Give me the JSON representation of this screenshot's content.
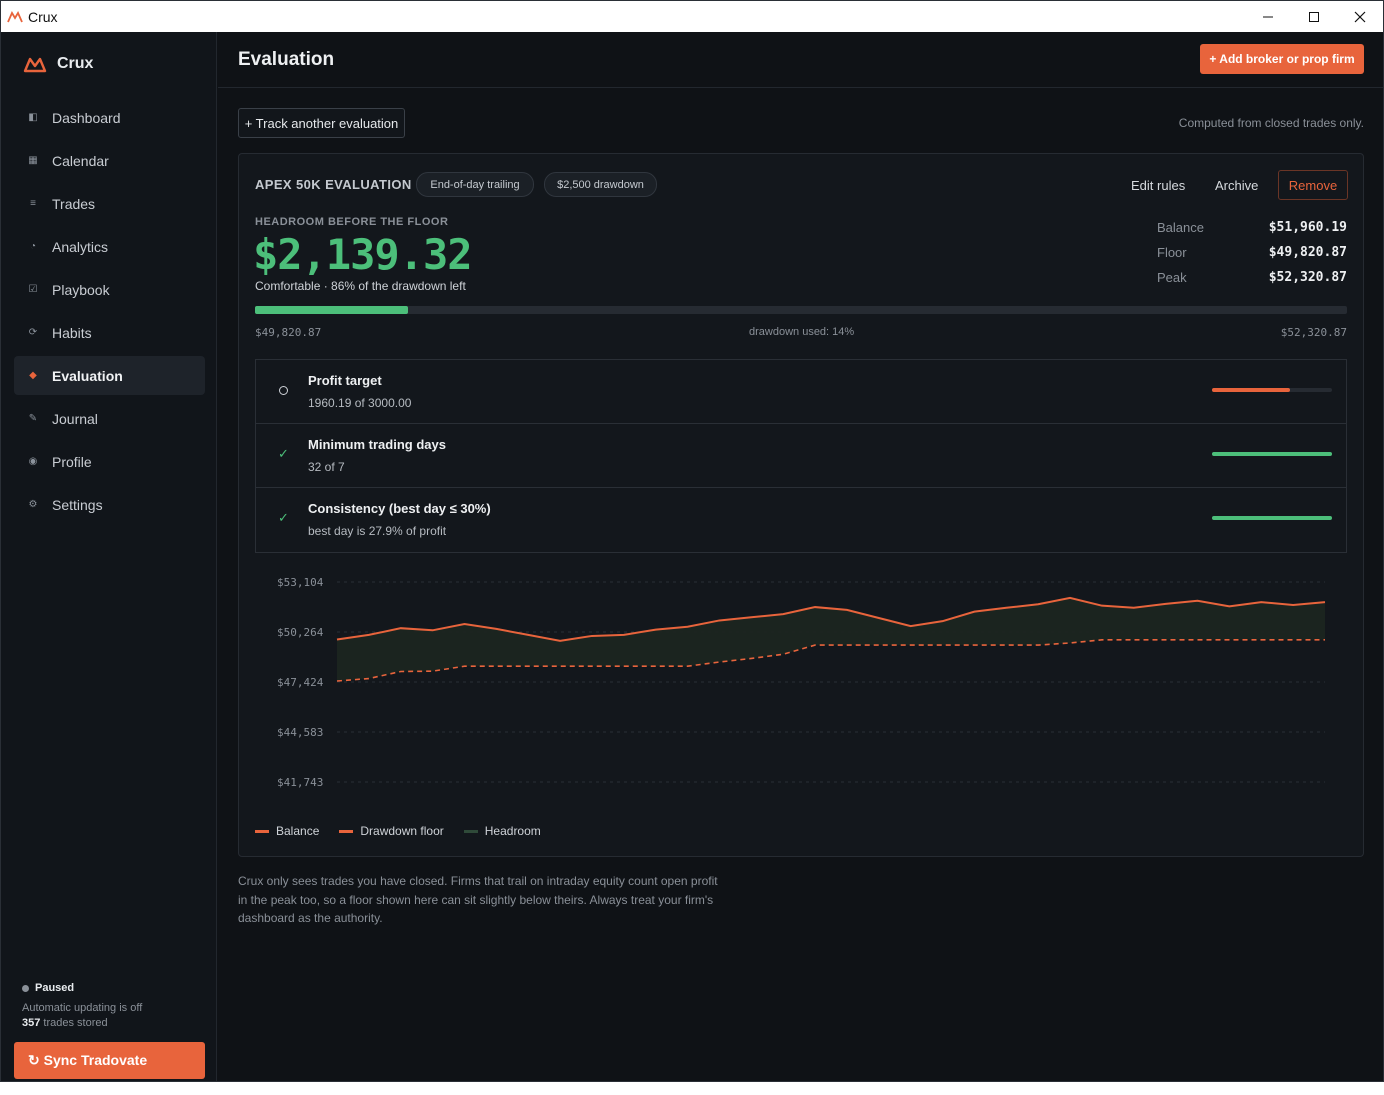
{
  "window": {
    "title": "Crux"
  },
  "sidebar": {
    "brand": "Crux",
    "items": [
      {
        "label": "Dashboard",
        "icon": "dashboard-icon",
        "glyph": "◧"
      },
      {
        "label": "Calendar",
        "icon": "calendar-icon",
        "glyph": "▦"
      },
      {
        "label": "Trades",
        "icon": "trades-icon",
        "glyph": "≡"
      },
      {
        "label": "Analytics",
        "icon": "analytics-icon",
        "glyph": "◔"
      },
      {
        "label": "Playbook",
        "icon": "playbook-icon",
        "glyph": "☑"
      },
      {
        "label": "Habits",
        "icon": "habits-icon",
        "glyph": "⟳"
      },
      {
        "label": "Evaluation",
        "icon": "evaluation-icon",
        "glyph": "◆"
      },
      {
        "label": "Journal",
        "icon": "journal-icon",
        "glyph": "✎"
      },
      {
        "label": "Profile",
        "icon": "profile-icon",
        "glyph": "◉"
      },
      {
        "label": "Settings",
        "icon": "settings-icon",
        "glyph": "⚙"
      }
    ],
    "active": "Evaluation",
    "status": {
      "state": "Paused",
      "detail": "Automatic updating is off",
      "trade_count": "357",
      "trade_suffix": " trades stored"
    },
    "sync_label": "↻ Sync Tradovate"
  },
  "header": {
    "title": "Evaluation",
    "add_label": "+ Add broker or prop firm"
  },
  "toolbar": {
    "track_label": "+ Track another evaluation",
    "computed_note": "Computed from closed trades only."
  },
  "evaluation": {
    "name": "APEX 50K EVALUATION",
    "tags": [
      "End-of-day trailing",
      "$2,500 drawdown"
    ],
    "actions": {
      "edit": "Edit rules",
      "archive": "Archive",
      "remove": "Remove"
    },
    "headroom_label": "HEADROOM BEFORE THE FLOOR",
    "headroom_value": "$2,139.32",
    "headroom_note": "Comfortable · 86% of the drawdown left",
    "stats": [
      {
        "label": "Balance",
        "value": "$51,960.19"
      },
      {
        "label": "Floor",
        "value": "$49,820.87"
      },
      {
        "label": "Peak",
        "value": "$52,320.87"
      }
    ],
    "progress": {
      "fraction_used": 0.14,
      "low_label": "$49,820.87",
      "mid_label": "drawdown used: 14%",
      "high_label": "$52,320.87",
      "color": "#4cbf7a"
    },
    "rules": [
      {
        "title": "Profit target",
        "detail": "1960.19 of 3000.00",
        "met": false,
        "progress": 0.653,
        "color": "#e8643c"
      },
      {
        "title": "Minimum trading days",
        "detail": "32 of 7",
        "met": true,
        "progress": 1.0,
        "color": "#4cbf7a"
      },
      {
        "title": "Consistency (best day ≤ 30%)",
        "detail": "best day is 27.9% of profit",
        "met": true,
        "progress": 1.0,
        "color": "#4cbf7a"
      }
    ],
    "check_glyph": "✓"
  },
  "chart_data": {
    "type": "line",
    "y_ticks": [
      "$53,104",
      "$50,264",
      "$47,424",
      "$44,583",
      "$41,743"
    ],
    "ylim": [
      41743,
      53104
    ],
    "grid": true,
    "legend_placement": "bottom-left",
    "series": [
      {
        "name": "Balance",
        "color": "#e8643c",
        "values": [
          49840,
          50100,
          50480,
          50360,
          50720,
          50440,
          50100,
          49760,
          50040,
          50100,
          50400,
          50560,
          50920,
          51100,
          51280,
          51680,
          51520,
          51060,
          50600,
          50880,
          51420,
          51640,
          51840,
          52200,
          51760,
          51640,
          51860,
          52040,
          51720,
          51960,
          51800,
          51960
        ]
      },
      {
        "name": "Drawdown floor",
        "color": "#e8643c",
        "dashed": true,
        "values": [
          47480,
          47620,
          48020,
          48040,
          48320,
          48320,
          48320,
          48320,
          48320,
          48320,
          48320,
          48320,
          48560,
          48760,
          49000,
          49520,
          49520,
          49520,
          49520,
          49520,
          49520,
          49520,
          49520,
          49640,
          49820,
          49820,
          49820,
          49820,
          49820,
          49820,
          49820,
          49820
        ]
      },
      {
        "name": "Headroom",
        "color": "#2f4a39"
      }
    ]
  },
  "disclaimer": "Crux only sees trades you have closed. Firms that trail on intraday equity count open profit in the peak too, so a floor shown here can sit slightly below theirs. Always treat your firm's dashboard as the authority."
}
